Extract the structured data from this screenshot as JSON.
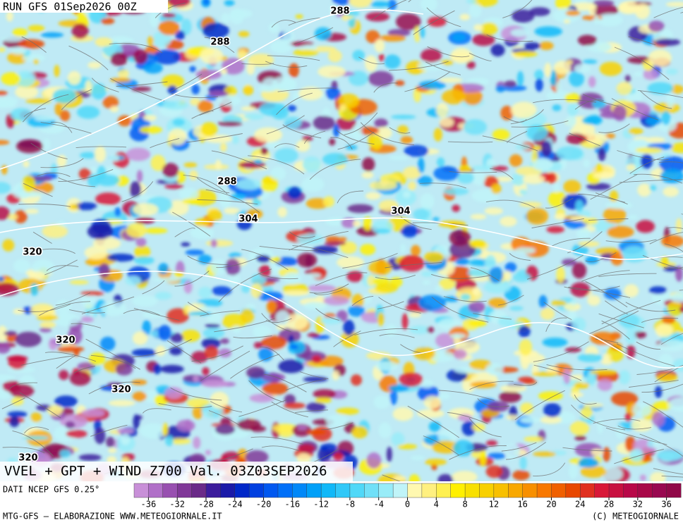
{
  "header": {
    "run": "RUN GFS 01Sep2026 00Z"
  },
  "map": {
    "title": "VVEL + GPT + WIND Z700 Val. 03Z03SEP2026",
    "contour_labels": [
      "288",
      "288",
      "288",
      "304",
      "304",
      "320",
      "320",
      "320",
      "320"
    ]
  },
  "colorbar": {
    "source": "DATI NCEP GFS 0.25°",
    "range": [
      -38,
      38
    ],
    "ticks": [
      -36,
      -32,
      -28,
      -24,
      -20,
      -16,
      -12,
      -8,
      -4,
      0,
      4,
      8,
      12,
      16,
      20,
      24,
      28,
      32,
      36
    ],
    "colors": [
      "#c890d8",
      "#b070c8",
      "#9850b0",
      "#803898",
      "#6a2a88",
      "#3c1c9c",
      "#1a1aa8",
      "#0028c8",
      "#0040e0",
      "#0058f0",
      "#0070f8",
      "#0088f8",
      "#00a0f8",
      "#10b8f8",
      "#30c8f8",
      "#50d8f8",
      "#70e0f8",
      "#98ecf8",
      "#c0f4f8",
      "#fff8b0",
      "#fff080",
      "#fff050",
      "#fff000",
      "#f8e000",
      "#f8d000",
      "#f8c000",
      "#f8a800",
      "#f89000",
      "#f87800",
      "#f06000",
      "#e84800",
      "#e03020",
      "#d81838",
      "#c81040",
      "#b80848",
      "#a80848",
      "#980850",
      "#900848"
    ]
  },
  "footer": {
    "left": "MTG-GFS – ELABORAZIONE WWW.METEOGIORNALE.IT",
    "right": "(C) METEOGIORNALE"
  }
}
